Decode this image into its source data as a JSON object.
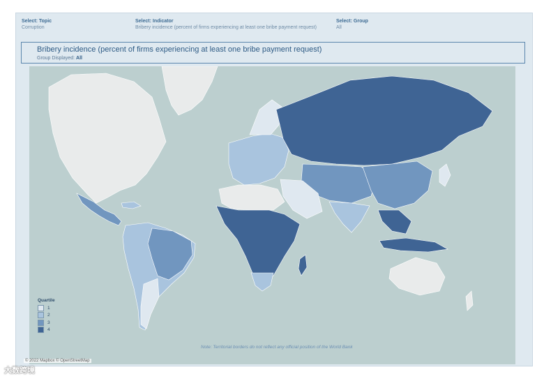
{
  "filters": [
    {
      "label": "Select: Topic",
      "value": "Corruption"
    },
    {
      "label": "Select: Indicator",
      "value": "Bribery incidence (percent of firms experiencing at least one bribe payment request)"
    },
    {
      "label": "Select: Group",
      "value": "All"
    }
  ],
  "header": {
    "title": "Bribery incidence (percent of firms experiencing at least one bribe payment request)",
    "group_label": "Group Displayed:",
    "group_value": "All"
  },
  "legend": {
    "title": "Quartile",
    "items": [
      {
        "label": "1",
        "color": "#dfe8f0"
      },
      {
        "label": "2",
        "color": "#a9c4de"
      },
      {
        "label": "3",
        "color": "#7196bf"
      },
      {
        "label": "4",
        "color": "#3f6494"
      }
    ]
  },
  "map_colors": {
    "ocean": "#bccfcf",
    "no_data": "#e9ebeb",
    "q1": "#dfe8f0",
    "q2": "#a9c4de",
    "q3": "#7196bf",
    "q4": "#3f6494"
  },
  "note": "Note: Territorial borders do not reflect any official position of the World Bank",
  "credit": "© 2022 Mapbox © OpenStreetMap",
  "brand": "大数跨境"
}
